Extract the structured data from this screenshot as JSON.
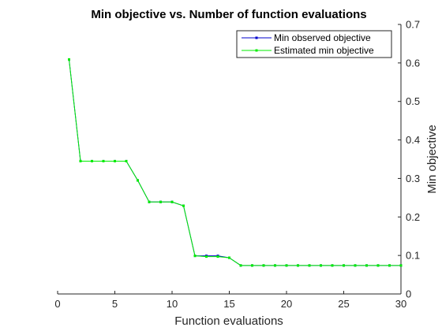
{
  "chart_data": {
    "type": "line",
    "title": "Min objective vs. Number of function evaluations",
    "xlabel": "Function evaluations",
    "ylabel": "Min objective",
    "xlim": [
      0,
      30
    ],
    "ylim": [
      0,
      0.7
    ],
    "xticks": [
      "0",
      "5",
      "10",
      "15",
      "20",
      "25",
      "30"
    ],
    "yticks": [
      "0",
      "0.1",
      "0.2",
      "0.3",
      "0.4",
      "0.5",
      "0.6",
      "0.7"
    ],
    "y_axis_side": "right",
    "grid": false,
    "legend_position": "top-right",
    "x": [
      1,
      2,
      3,
      4,
      5,
      6,
      7,
      8,
      9,
      10,
      11,
      12,
      13,
      14,
      15,
      16,
      17,
      18,
      19,
      20,
      21,
      22,
      23,
      24,
      25,
      26,
      27,
      28,
      29,
      30
    ],
    "series": [
      {
        "name": "Min observed objective",
        "color": "#0000cc",
        "values": [
          0.609,
          0.345,
          0.345,
          0.345,
          0.345,
          0.345,
          0.295,
          0.239,
          0.239,
          0.239,
          0.229,
          0.099,
          0.099,
          0.099,
          0.094,
          0.074,
          0.074,
          0.074,
          0.074,
          0.074,
          0.074,
          0.074,
          0.074,
          0.074,
          0.074,
          0.074,
          0.074,
          0.074,
          0.074,
          0.074
        ]
      },
      {
        "name": "Estimated min objective",
        "color": "#00ee00",
        "values": [
          0.609,
          0.345,
          0.345,
          0.345,
          0.345,
          0.345,
          0.295,
          0.239,
          0.239,
          0.239,
          0.229,
          0.099,
          0.097,
          0.097,
          0.094,
          0.074,
          0.074,
          0.074,
          0.074,
          0.074,
          0.074,
          0.074,
          0.074,
          0.074,
          0.074,
          0.074,
          0.074,
          0.074,
          0.074,
          0.074
        ]
      }
    ]
  }
}
